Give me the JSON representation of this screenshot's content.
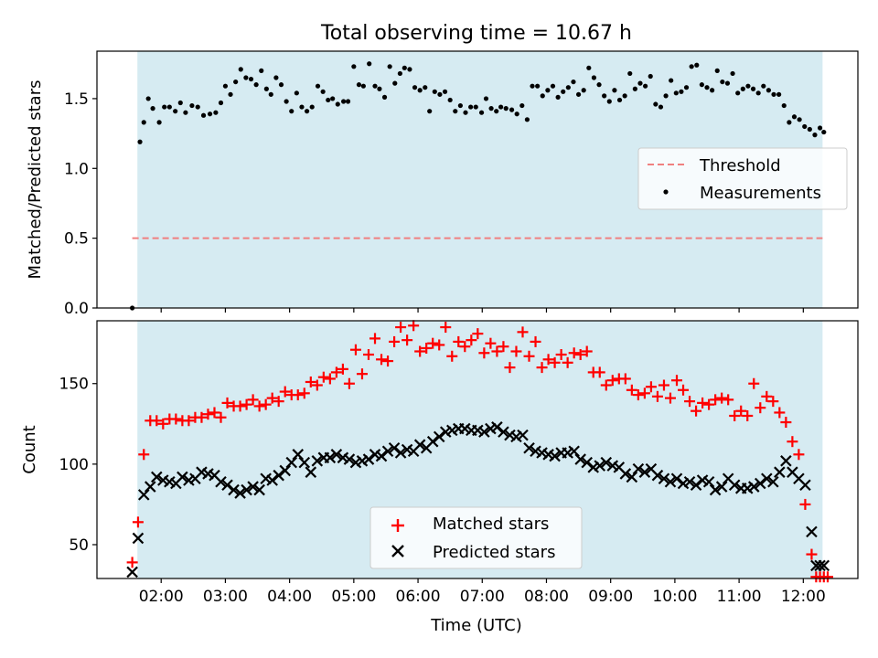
{
  "title": "Total observing time = 10.67 h",
  "x_ticks": [
    "02:00",
    "03:00",
    "04:00",
    "05:00",
    "06:00",
    "07:00",
    "08:00",
    "09:00",
    "10:00",
    "11:00",
    "12:00"
  ],
  "xlabel": "Time (UTC)",
  "colors": {
    "shade": "#add8e6",
    "matched": "#ff0000",
    "predicted": "#000000",
    "threshold": "#f08080"
  },
  "chart_data": [
    {
      "type": "scatter",
      "title": "Total observing time = 10.67 h",
      "xlabel": "",
      "ylabel": "Matched/Predicted stars",
      "x_unit": "hours UTC",
      "xlim": [
        1.0,
        12.85
      ],
      "ylim": [
        0,
        1.84
      ],
      "yticks": [
        "0.0",
        "0.5",
        "1.0",
        "1.5"
      ],
      "shaded_span": [
        1.63,
        12.3
      ],
      "threshold": {
        "name": "Threshold",
        "value": 0.5,
        "x_range": [
          1.55,
          12.3
        ]
      },
      "legend": {
        "position": "center-right",
        "entries": [
          "Threshold",
          "Measurements"
        ]
      },
      "series": [
        {
          "name": "Measurements",
          "x": [
            1.55,
            1.67,
            1.73,
            1.8,
            1.87,
            1.97,
            2.05,
            2.13,
            2.22,
            2.3,
            2.38,
            2.48,
            2.57,
            2.66,
            2.76,
            2.85,
            2.93,
            3.0,
            3.08,
            3.16,
            3.24,
            3.32,
            3.4,
            3.48,
            3.56,
            3.64,
            3.71,
            3.79,
            3.87,
            3.95,
            4.03,
            4.11,
            4.19,
            4.27,
            4.35,
            4.44,
            4.52,
            4.6,
            4.67,
            4.75,
            4.84,
            4.91,
            5.0,
            5.08,
            5.15,
            5.24,
            5.33,
            5.4,
            5.48,
            5.56,
            5.64,
            5.72,
            5.79,
            5.87,
            5.95,
            6.03,
            6.11,
            6.18,
            6.26,
            6.34,
            6.42,
            6.5,
            6.58,
            6.66,
            6.74,
            6.82,
            6.9,
            6.99,
            7.06,
            7.14,
            7.22,
            7.29,
            7.37,
            7.46,
            7.54,
            7.62,
            7.7,
            7.78,
            7.86,
            7.94,
            8.02,
            8.1,
            8.18,
            8.26,
            8.34,
            8.42,
            8.5,
            8.58,
            8.66,
            8.74,
            8.82,
            8.9,
            8.98,
            9.06,
            9.14,
            9.22,
            9.3,
            9.38,
            9.46,
            9.54,
            9.62,
            9.7,
            9.78,
            9.86,
            9.94,
            10.02,
            10.1,
            10.18,
            10.26,
            10.34,
            10.42,
            10.5,
            10.58,
            10.66,
            10.74,
            10.82,
            10.9,
            10.98,
            11.06,
            11.14,
            11.22,
            11.3,
            11.38,
            11.46,
            11.54,
            11.62,
            11.7,
            11.78,
            11.86,
            11.94,
            12.02,
            12.1,
            12.18,
            12.26,
            12.32
          ],
          "y": [
            0.0,
            1.19,
            1.33,
            1.5,
            1.43,
            1.33,
            1.44,
            1.44,
            1.41,
            1.47,
            1.4,
            1.45,
            1.44,
            1.38,
            1.39,
            1.4,
            1.47,
            1.59,
            1.53,
            1.62,
            1.71,
            1.65,
            1.64,
            1.6,
            1.7,
            1.57,
            1.53,
            1.65,
            1.6,
            1.48,
            1.41,
            1.54,
            1.44,
            1.41,
            1.44,
            1.59,
            1.55,
            1.49,
            1.5,
            1.46,
            1.48,
            1.48,
            1.73,
            1.6,
            1.59,
            1.75,
            1.59,
            1.57,
            1.51,
            1.73,
            1.61,
            1.68,
            1.72,
            1.71,
            1.58,
            1.56,
            1.58,
            1.41,
            1.55,
            1.53,
            1.55,
            1.49,
            1.41,
            1.45,
            1.4,
            1.44,
            1.44,
            1.4,
            1.5,
            1.43,
            1.41,
            1.44,
            1.43,
            1.42,
            1.39,
            1.45,
            1.35,
            1.59,
            1.59,
            1.52,
            1.56,
            1.59,
            1.51,
            1.55,
            1.58,
            1.62,
            1.53,
            1.56,
            1.72,
            1.65,
            1.6,
            1.52,
            1.48,
            1.56,
            1.49,
            1.52,
            1.68,
            1.57,
            1.61,
            1.59,
            1.66,
            1.46,
            1.44,
            1.52,
            1.63,
            1.54,
            1.55,
            1.58,
            1.73,
            1.74,
            1.6,
            1.58,
            1.56,
            1.7,
            1.62,
            1.61,
            1.68,
            1.54,
            1.57,
            1.59,
            1.57,
            1.54,
            1.59,
            1.56,
            1.53,
            1.53,
            1.45,
            1.33,
            1.37,
            1.35,
            1.3,
            1.28,
            1.24,
            1.29,
            1.26
          ]
        }
      ]
    },
    {
      "type": "scatter",
      "title": "",
      "xlabel": "Time (UTC)",
      "ylabel": "Count",
      "x_unit": "hours UTC",
      "xlim": [
        1.0,
        12.85
      ],
      "ylim": [
        29,
        189
      ],
      "yticks": [
        "50",
        "100",
        "150"
      ],
      "shaded_span": [
        1.63,
        12.3
      ],
      "legend": {
        "position": "bottom-center",
        "entries": [
          "Matched stars",
          "Predicted stars"
        ]
      },
      "series": [
        {
          "name": "Matched stars",
          "x": [
            1.55,
            1.64,
            1.73,
            1.83,
            1.93,
            2.03,
            2.13,
            2.23,
            2.33,
            2.43,
            2.53,
            2.63,
            2.73,
            2.83,
            2.93,
            3.03,
            3.13,
            3.23,
            3.33,
            3.43,
            3.53,
            3.63,
            3.73,
            3.83,
            3.93,
            4.03,
            4.13,
            4.23,
            4.33,
            4.43,
            4.53,
            4.63,
            4.73,
            4.83,
            4.93,
            5.03,
            5.13,
            5.23,
            5.33,
            5.43,
            5.53,
            5.63,
            5.73,
            5.83,
            5.93,
            6.03,
            6.13,
            6.23,
            6.33,
            6.43,
            6.53,
            6.63,
            6.73,
            6.83,
            6.93,
            7.03,
            7.13,
            7.23,
            7.33,
            7.43,
            7.53,
            7.63,
            7.73,
            7.83,
            7.93,
            8.03,
            8.13,
            8.23,
            8.33,
            8.43,
            8.53,
            8.63,
            8.73,
            8.83,
            8.93,
            9.03,
            9.13,
            9.23,
            9.33,
            9.43,
            9.53,
            9.63,
            9.73,
            9.83,
            9.93,
            10.03,
            10.13,
            10.23,
            10.33,
            10.43,
            10.53,
            10.63,
            10.73,
            10.83,
            10.93,
            11.03,
            11.13,
            11.23,
            11.33,
            11.43,
            11.53,
            11.63,
            11.73,
            11.83,
            11.93,
            12.03,
            12.13,
            12.2,
            12.26,
            12.32,
            12.38
          ],
          "y": [
            39,
            64,
            106,
            127,
            127,
            125,
            128,
            128,
            127,
            127,
            129,
            129,
            131,
            132,
            129,
            138,
            136,
            136,
            137,
            140,
            136,
            137,
            141,
            139,
            145,
            143,
            143,
            144,
            151,
            149,
            154,
            153,
            157,
            159,
            150,
            171,
            156,
            168,
            178,
            165,
            164,
            176,
            185,
            177,
            186,
            170,
            172,
            175,
            174,
            185,
            167,
            176,
            173,
            177,
            181,
            169,
            175,
            170,
            173,
            160,
            170,
            182,
            167,
            176,
            160,
            165,
            163,
            168,
            163,
            169,
            168,
            170,
            157,
            157,
            149,
            152,
            153,
            153,
            146,
            143,
            144,
            148,
            142,
            149,
            141,
            152,
            146,
            139,
            133,
            138,
            137,
            140,
            141,
            140,
            130,
            133,
            130,
            150,
            135,
            142,
            139,
            132,
            126,
            114,
            106,
            75,
            44,
            30,
            30,
            30,
            30
          ],
          "marker": "+"
        },
        {
          "name": "Predicted stars",
          "x": [
            1.55,
            1.64,
            1.73,
            1.83,
            1.93,
            2.03,
            2.13,
            2.23,
            2.33,
            2.43,
            2.53,
            2.63,
            2.73,
            2.83,
            2.93,
            3.03,
            3.13,
            3.23,
            3.33,
            3.43,
            3.53,
            3.63,
            3.73,
            3.83,
            3.93,
            4.03,
            4.13,
            4.23,
            4.33,
            4.43,
            4.53,
            4.63,
            4.73,
            4.83,
            4.93,
            5.03,
            5.13,
            5.23,
            5.33,
            5.43,
            5.53,
            5.63,
            5.73,
            5.83,
            5.93,
            6.03,
            6.13,
            6.23,
            6.33,
            6.43,
            6.53,
            6.63,
            6.73,
            6.83,
            6.93,
            7.03,
            7.13,
            7.23,
            7.33,
            7.43,
            7.53,
            7.63,
            7.73,
            7.83,
            7.93,
            8.03,
            8.13,
            8.23,
            8.33,
            8.43,
            8.53,
            8.63,
            8.73,
            8.83,
            8.93,
            9.03,
            9.13,
            9.23,
            9.33,
            9.43,
            9.53,
            9.63,
            9.73,
            9.83,
            9.93,
            10.03,
            10.13,
            10.23,
            10.33,
            10.43,
            10.53,
            10.63,
            10.73,
            10.83,
            10.93,
            11.03,
            11.13,
            11.23,
            11.33,
            11.43,
            11.53,
            11.63,
            11.73,
            11.83,
            11.93,
            12.03,
            12.13,
            12.2,
            12.26,
            12.32
          ],
          "y": [
            33,
            54,
            81,
            86,
            92,
            90,
            89,
            88,
            92,
            90,
            91,
            95,
            94,
            93,
            89,
            87,
            84,
            82,
            84,
            86,
            84,
            91,
            90,
            93,
            96,
            101,
            106,
            101,
            95,
            102,
            104,
            104,
            106,
            104,
            103,
            101,
            102,
            103,
            106,
            105,
            108,
            110,
            107,
            109,
            108,
            112,
            110,
            114,
            117,
            120,
            121,
            122,
            122,
            121,
            121,
            120,
            122,
            123,
            120,
            118,
            117,
            118,
            110,
            108,
            107,
            106,
            105,
            107,
            107,
            108,
            103,
            101,
            98,
            99,
            101,
            99,
            98,
            94,
            92,
            97,
            95,
            97,
            93,
            91,
            89,
            91,
            88,
            89,
            87,
            90,
            89,
            84,
            86,
            91,
            87,
            85,
            85,
            86,
            88,
            91,
            89,
            95,
            102,
            95,
            91,
            87,
            58,
            37,
            37,
            37
          ],
          "marker": "x"
        }
      ]
    }
  ]
}
